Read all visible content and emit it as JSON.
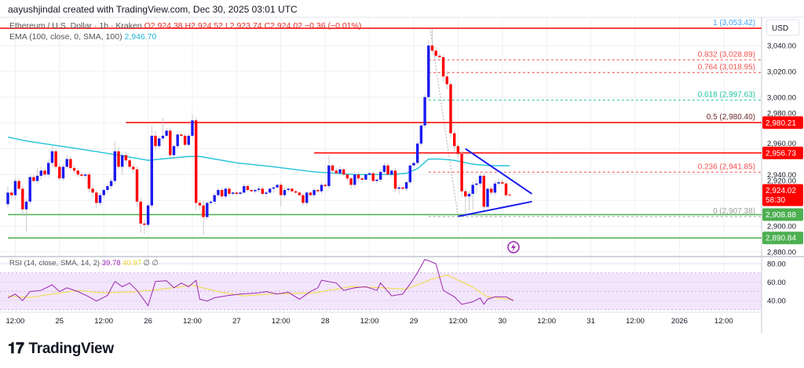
{
  "header": {
    "attribution": "aayushjindal created with TradingView.com, Dec 30, 2025 03:01 UTC"
  },
  "legend": {
    "symbol": "Ethereum / U.S. Dollar · 1h · Kraken",
    "open": "O2,924.38",
    "high": "H2,924.52",
    "low": "L2,923.74",
    "close": "C2,924.02",
    "change": "−0.36 (−0.01%)",
    "ema_label": "EMA (100, close, 0, SMA, 100)",
    "ema_value": "2,946.70"
  },
  "rsi_legend": {
    "label": "RSI (14, close, SMA, 14, 2)",
    "rsi": "39.78",
    "sma": "40.97",
    "extra": "∅ ∅"
  },
  "logo": {
    "text": "TradingView",
    "mark": "17"
  },
  "colors": {
    "up": "#1a1aee",
    "down": "#ff0000",
    "ema": "#22c1d9",
    "support": "#4caf50",
    "resistance": "#ff0000",
    "rsi": "#9c27b0",
    "rsi_sma": "#f0dc3a",
    "trendline": "#1a1aee"
  },
  "chart_data": {
    "type": "candlestick",
    "interval": "1h",
    "currency": "USD",
    "ylim": [
      2870,
      3060
    ],
    "price_ticks": [
      "3,040.00",
      "3,020.00",
      "3,000.00",
      "2,980.00",
      "2,960.00",
      "2,940.00",
      "2,920.00",
      "2,900.00",
      "2,880.00"
    ],
    "price_tick_values": [
      3040,
      3020,
      3000,
      2980,
      2960,
      2940,
      2920,
      2900,
      2880
    ],
    "time_labels": [
      "12:00",
      "25",
      "12:00",
      "26",
      "12:00",
      "27",
      "12:00",
      "28",
      "12:00",
      "29",
      "12:00",
      "30",
      "12:00",
      "31",
      "12:00",
      "2026",
      "12:00"
    ],
    "first_bar": "Dec 24 10:00",
    "candles": [
      [
        2917,
        2931,
        2914,
        2926
      ],
      [
        2926,
        2928,
        2922,
        2924
      ],
      [
        2924,
        2937,
        2921,
        2935
      ],
      [
        2935,
        2937,
        2928,
        2929
      ],
      [
        2929,
        2932,
        2908,
        2913
      ],
      [
        2913,
        2921,
        2896,
        2919
      ],
      [
        2919,
        2940,
        2917,
        2938
      ],
      [
        2938,
        2940,
        2934,
        2935
      ],
      [
        2935,
        2945,
        2933,
        2939
      ],
      [
        2939,
        2946,
        2936,
        2943
      ],
      [
        2943,
        2945,
        2938,
        2940
      ],
      [
        2940,
        2952,
        2938,
        2949
      ],
      [
        2949,
        2962,
        2946,
        2958
      ],
      [
        2958,
        2960,
        2944,
        2946
      ],
      [
        2946,
        2948,
        2935,
        2937
      ],
      [
        2937,
        2948,
        2935,
        2946
      ],
      [
        2946,
        2955,
        2944,
        2952
      ],
      [
        2952,
        2954,
        2943,
        2945
      ],
      [
        2945,
        2947,
        2941,
        2943
      ],
      [
        2943,
        2945,
        2938,
        2940
      ],
      [
        2940,
        2942,
        2938,
        2939
      ],
      [
        2939,
        2941,
        2937,
        2940
      ],
      [
        2940,
        2942,
        2926,
        2929
      ],
      [
        2929,
        2932,
        2922,
        2926
      ],
      [
        2926,
        2928,
        2914,
        2918
      ],
      [
        2918,
        2926,
        2916,
        2924
      ],
      [
        2924,
        2930,
        2922,
        2928
      ],
      [
        2928,
        2933,
        2926,
        2931
      ],
      [
        2931,
        2937,
        2929,
        2935
      ],
      [
        2935,
        2966,
        2933,
        2958
      ],
      [
        2958,
        2961,
        2944,
        2946
      ],
      [
        2946,
        2957,
        2940,
        2955
      ],
      [
        2955,
        2958,
        2948,
        2951
      ],
      [
        2951,
        2953,
        2944,
        2946
      ],
      [
        2946,
        2948,
        2941,
        2944
      ],
      [
        2944,
        2946,
        2915,
        2919
      ],
      [
        2919,
        2922,
        2895,
        2902
      ],
      [
        2902,
        2905,
        2894,
        2901
      ],
      [
        2901,
        2918,
        2899,
        2916
      ],
      [
        2916,
        2978,
        2914,
        2970
      ],
      [
        2970,
        2974,
        2958,
        2962
      ],
      [
        2962,
        2970,
        2960,
        2968
      ],
      [
        2968,
        2984,
        2966,
        2970
      ],
      [
        2970,
        2976,
        2968,
        2974
      ],
      [
        2974,
        2976,
        2953,
        2955
      ],
      [
        2955,
        2963,
        2952,
        2962
      ],
      [
        2962,
        2973,
        2960,
        2971
      ],
      [
        2971,
        2973,
        2969,
        2970
      ],
      [
        2970,
        2972,
        2962,
        2963
      ],
      [
        2963,
        2972,
        2961,
        2970
      ],
      [
        2970,
        2986,
        2968,
        2982
      ],
      [
        2982,
        2984,
        2912,
        2918
      ],
      [
        2918,
        2920,
        2913,
        2916
      ],
      [
        2916,
        2920,
        2893,
        2907
      ],
      [
        2907,
        2919,
        2905,
        2918
      ],
      [
        2918,
        2920,
        2916,
        2919
      ],
      [
        2919,
        2926,
        2917,
        2924
      ],
      [
        2924,
        2930,
        2922,
        2928
      ],
      [
        2928,
        2930,
        2921,
        2923
      ],
      [
        2923,
        2931,
        2921,
        2929
      ],
      [
        2929,
        2931,
        2923,
        2925
      ],
      [
        2925,
        2927,
        2924,
        2926
      ],
      [
        2926,
        2927,
        2924,
        2925
      ],
      [
        2925,
        2927,
        2924,
        2926
      ],
      [
        2926,
        2933,
        2925,
        2931
      ],
      [
        2931,
        2932,
        2927,
        2928
      ],
      [
        2928,
        2929,
        2926,
        2927
      ],
      [
        2927,
        2930,
        2925,
        2928
      ],
      [
        2928,
        2931,
        2926,
        2929
      ],
      [
        2929,
        2931,
        2924,
        2925
      ],
      [
        2925,
        2927,
        2922,
        2926
      ],
      [
        2926,
        2930,
        2925,
        2929
      ],
      [
        2929,
        2931,
        2926,
        2930
      ],
      [
        2930,
        2933,
        2929,
        2932
      ],
      [
        2932,
        2934,
        2915,
        2924
      ],
      [
        2924,
        2930,
        2922,
        2928
      ],
      [
        2928,
        2930,
        2927,
        2929
      ],
      [
        2929,
        2930,
        2926,
        2927
      ],
      [
        2927,
        2928,
        2925,
        2926
      ],
      [
        2926,
        2927,
        2923,
        2924
      ],
      [
        2924,
        2925,
        2916,
        2918
      ],
      [
        2918,
        2927,
        2916,
        2926
      ],
      [
        2926,
        2927,
        2923,
        2924
      ],
      [
        2924,
        2930,
        2922,
        2928
      ],
      [
        2928,
        2929,
        2926,
        2927
      ],
      [
        2927,
        2934,
        2925,
        2932
      ],
      [
        2932,
        2933,
        2930,
        2931
      ],
      [
        2931,
        2955,
        2929,
        2947
      ],
      [
        2947,
        2948,
        2941,
        2943
      ],
      [
        2943,
        2945,
        2940,
        2941
      ],
      [
        2941,
        2946,
        2939,
        2944
      ],
      [
        2944,
        2945,
        2939,
        2940
      ],
      [
        2940,
        2941,
        2935,
        2937
      ],
      [
        2937,
        2938,
        2929,
        2932
      ],
      [
        2932,
        2942,
        2930,
        2940
      ],
      [
        2940,
        2942,
        2935,
        2937
      ],
      [
        2937,
        2938,
        2934,
        2936
      ],
      [
        2936,
        2941,
        2935,
        2940
      ],
      [
        2940,
        2942,
        2939,
        2941
      ],
      [
        2941,
        2942,
        2934,
        2935
      ],
      [
        2935,
        2937,
        2933,
        2936
      ],
      [
        2936,
        2944,
        2934,
        2942
      ],
      [
        2942,
        2949,
        2940,
        2947
      ],
      [
        2947,
        2949,
        2939,
        2940
      ],
      [
        2940,
        2944,
        2938,
        2943
      ],
      [
        2943,
        2945,
        2926,
        2929
      ],
      [
        2929,
        2932,
        2925,
        2930
      ],
      [
        2930,
        2931,
        2928,
        2929
      ],
      [
        2929,
        2935,
        2927,
        2934
      ],
      [
        2934,
        2949,
        2932,
        2947
      ],
      [
        2947,
        2950,
        2946,
        2949
      ],
      [
        2949,
        2966,
        2947,
        2964
      ],
      [
        2964,
        2980,
        2962,
        2978
      ],
      [
        2978,
        3002,
        2976,
        3000
      ],
      [
        3000,
        3044,
        2998,
        3040
      ],
      [
        3040,
        3053,
        3034,
        3036
      ],
      [
        3036,
        3039,
        3030,
        3032
      ],
      [
        3032,
        3034,
        3028,
        3031
      ],
      [
        3031,
        3033,
        3012,
        3016
      ],
      [
        3016,
        3020,
        3006,
        3010
      ],
      [
        3010,
        3012,
        2968,
        2972
      ],
      [
        2972,
        2974,
        2958,
        2962
      ],
      [
        2962,
        2964,
        2952,
        2956
      ],
      [
        2956,
        2958,
        2922,
        2927
      ],
      [
        2927,
        2929,
        2907,
        2923
      ],
      [
        2923,
        2927,
        2912,
        2925
      ],
      [
        2925,
        2934,
        2913,
        2932
      ],
      [
        2932,
        2936,
        2926,
        2933
      ],
      [
        2933,
        2941,
        2930,
        2939
      ],
      [
        2939,
        2941,
        2912,
        2915
      ],
      [
        2915,
        2930,
        2914,
        2929
      ],
      [
        2929,
        2931,
        2924,
        2926
      ],
      [
        2926,
        2935,
        2924,
        2933
      ],
      [
        2933,
        2937,
        2931,
        2934
      ],
      [
        2934,
        2936,
        2932,
        2933
      ],
      [
        2933,
        2935,
        2923,
        2924
      ],
      [
        2924.38,
        2924.52,
        2923.74,
        2924.02
      ]
    ],
    "ema": [
      [
        0,
        2969
      ],
      [
        5,
        2966
      ],
      [
        19,
        2960
      ],
      [
        30,
        2955
      ],
      [
        38,
        2951
      ],
      [
        49,
        2954
      ],
      [
        52,
        2954
      ],
      [
        62,
        2949
      ],
      [
        72,
        2946
      ],
      [
        83,
        2942
      ],
      [
        94,
        2940
      ],
      [
        104,
        2940
      ],
      [
        108,
        2941
      ],
      [
        111,
        2944.5
      ],
      [
        114,
        2952
      ],
      [
        117,
        2952
      ],
      [
        121,
        2951
      ],
      [
        126,
        2948
      ],
      [
        130,
        2947
      ],
      [
        136,
        2946.7
      ]
    ],
    "horizontal_levels": [
      {
        "price": 2980.21,
        "label": "2,980.21",
        "kind": "resistance",
        "from_bar": 32
      },
      {
        "price": 2956.73,
        "label": "2,956.73",
        "kind": "resistance",
        "from_bar": 83
      },
      {
        "price": 2908.88,
        "label": "2,908.88",
        "kind": "support",
        "from_bar": 0
      },
      {
        "price": 2890.84,
        "label": "2,890.84",
        "kind": "support",
        "from_bar": 0
      }
    ],
    "last_price": {
      "price": 2924.02,
      "label": "2,924.02",
      "countdown": "58:30"
    },
    "fibonacci": {
      "from_bar": 114,
      "high": 3053.42,
      "low": 2907.38,
      "low_bar": 122,
      "levels": [
        {
          "ratio": "1",
          "price": 3053.42,
          "label": "1 (3,053.42)",
          "color": "#42a5f5",
          "solid": true
        },
        {
          "ratio": "0.832",
          "price": 3028.89,
          "label": "0.832 (3,028.89)",
          "color": "#ef5350"
        },
        {
          "ratio": "0.764",
          "price": 3018.95,
          "label": "0.764 (3,018.95)",
          "color": "#ef5350"
        },
        {
          "ratio": "0.618",
          "price": 2997.63,
          "label": "0.618 (2,997.63)",
          "color": "#26c6a0"
        },
        {
          "ratio": "0.5",
          "price": 2980.4,
          "label": "0.5 (2,980.40)",
          "color": "#6d2a2a"
        },
        {
          "ratio": "0.236",
          "price": 2941.85,
          "label": "0.236 (2,941.85)",
          "color": "#ef5350"
        },
        {
          "ratio": "0",
          "price": 2907.38,
          "label": "0 (2,907.38)",
          "color": "#9e9e9e"
        }
      ]
    },
    "triangle": {
      "upper": [
        [
          124,
          2960
        ],
        [
          142,
          2925
        ]
      ],
      "lower": [
        [
          122,
          2907.5
        ],
        [
          142,
          2919
        ]
      ]
    },
    "rsi": {
      "ylim": [
        20,
        90
      ],
      "ticks": [
        "80.00",
        "60.00",
        "40.00"
      ],
      "tick_values": [
        80,
        60,
        40
      ],
      "band": [
        30,
        70
      ],
      "values": [
        [
          0,
          42.8
        ],
        [
          2,
          47
        ],
        [
          4,
          40
        ],
        [
          6,
          49.7
        ],
        [
          9,
          51
        ],
        [
          12,
          57
        ],
        [
          14,
          49.7
        ],
        [
          16,
          53.8
        ],
        [
          19,
          49.7
        ],
        [
          22,
          44
        ],
        [
          24,
          39.4
        ],
        [
          27,
          45.5
        ],
        [
          29,
          60.7
        ],
        [
          31,
          55
        ],
        [
          33,
          59
        ],
        [
          35,
          51
        ],
        [
          38,
          34.5
        ],
        [
          40,
          60.7
        ],
        [
          43,
          61.5
        ],
        [
          45,
          53.8
        ],
        [
          47,
          59
        ],
        [
          49,
          55
        ],
        [
          51,
          62
        ],
        [
          52,
          41.4
        ],
        [
          54,
          39.4
        ],
        [
          56,
          43
        ],
        [
          59,
          45
        ],
        [
          63,
          47
        ],
        [
          68,
          48.3
        ],
        [
          70,
          49.7
        ],
        [
          73,
          47
        ],
        [
          76,
          49
        ],
        [
          79,
          41.4
        ],
        [
          82,
          49.7
        ],
        [
          84,
          53.8
        ],
        [
          85,
          62
        ],
        [
          89,
          59
        ],
        [
          91,
          51
        ],
        [
          94,
          53.8
        ],
        [
          97,
          55
        ],
        [
          100,
          51
        ],
        [
          101,
          59
        ],
        [
          104,
          45
        ],
        [
          107,
          47
        ],
        [
          109,
          58
        ],
        [
          111,
          70
        ],
        [
          113,
          84.7
        ],
        [
          116,
          80
        ],
        [
          118,
          51
        ],
        [
          121,
          44
        ],
        [
          123,
          35.9
        ],
        [
          126,
          38.6
        ],
        [
          128,
          42.8
        ],
        [
          129,
          35.9
        ],
        [
          130,
          41.4
        ],
        [
          132,
          44
        ],
        [
          135,
          44
        ],
        [
          137,
          39.78
        ]
      ],
      "sma": [
        [
          0,
          45
        ],
        [
          6,
          43.3
        ],
        [
          12,
          47
        ],
        [
          19,
          51
        ],
        [
          26,
          48.3
        ],
        [
          35,
          49.7
        ],
        [
          42,
          52.4
        ],
        [
          50,
          56.6
        ],
        [
          57,
          49.7
        ],
        [
          64,
          45
        ],
        [
          71,
          47
        ],
        [
          83,
          48.3
        ],
        [
          93,
          55
        ],
        [
          101,
          53.8
        ],
        [
          108,
          52.4
        ],
        [
          115,
          63.4
        ],
        [
          119,
          67.6
        ],
        [
          125,
          56.6
        ],
        [
          130,
          44
        ],
        [
          137,
          40.97
        ]
      ]
    }
  }
}
